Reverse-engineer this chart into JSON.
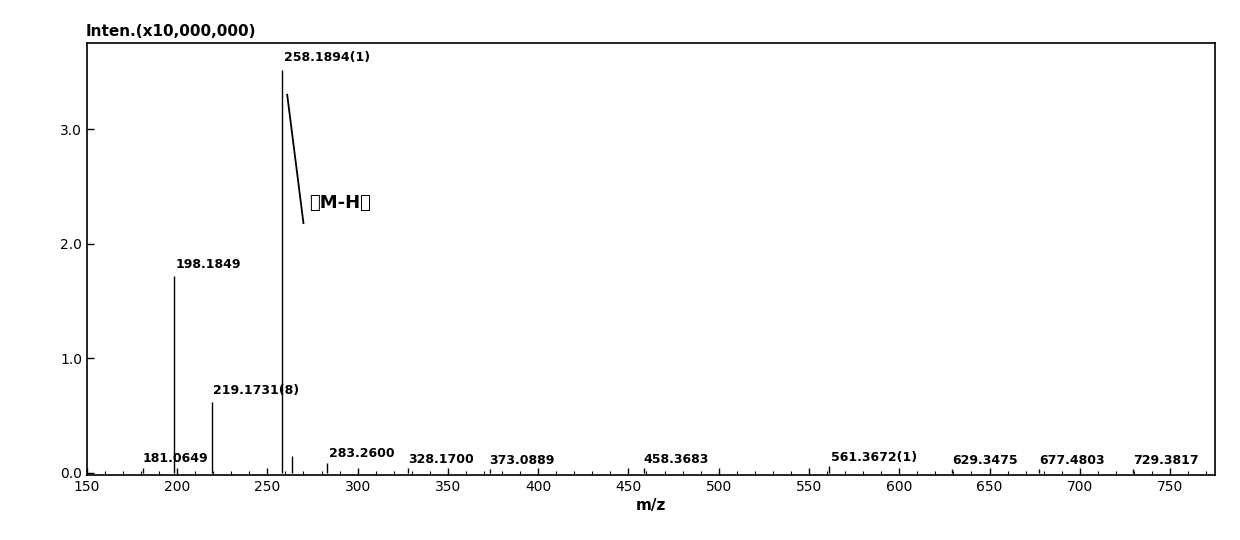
{
  "peaks": [
    {
      "mz": 181.0649,
      "intensity": 0.04,
      "label": "181.0649"
    },
    {
      "mz": 198.1849,
      "intensity": 1.72,
      "label": "198.1849"
    },
    {
      "mz": 219.1731,
      "intensity": 0.62,
      "label": "219.1731(8)"
    },
    {
      "mz": 258.1894,
      "intensity": 3.52,
      "label": "258.1894(1)"
    },
    {
      "mz": 263.5,
      "intensity": 0.15,
      "label": ""
    },
    {
      "mz": 283.26,
      "intensity": 0.09,
      "label": "283.2600"
    },
    {
      "mz": 328.17,
      "intensity": 0.04,
      "label": "328.1700"
    },
    {
      "mz": 373.0889,
      "intensity": 0.03,
      "label": "373.0889"
    },
    {
      "mz": 458.3683,
      "intensity": 0.04,
      "label": "458.3683"
    },
    {
      "mz": 561.3672,
      "intensity": 0.06,
      "label": "561.3672(1)"
    },
    {
      "mz": 629.3475,
      "intensity": 0.03,
      "label": "629.3475"
    },
    {
      "mz": 677.4803,
      "intensity": 0.03,
      "label": "677.4803"
    },
    {
      "mz": 729.3817,
      "intensity": 0.03,
      "label": "729.3817"
    }
  ],
  "xlim": [
    150,
    775
  ],
  "ylim": [
    -0.02,
    3.75
  ],
  "xticks": [
    150,
    200,
    250,
    300,
    350,
    400,
    450,
    500,
    550,
    600,
    650,
    700,
    750
  ],
  "yticks": [
    0.0,
    1.0,
    2.0,
    3.0
  ],
  "xlabel": "m/z",
  "ylabel": "Inten.(x10,000,000)",
  "annotation_label": "【M-H】",
  "line_color": "#000000",
  "background_color": "#ffffff",
  "font_size_ticks": 10,
  "font_size_ylabel": 11,
  "font_size_xlabel": 11,
  "font_size_peak_labels": 9,
  "font_size_annotation": 13,
  "peak_label_offsets": {
    "181.0649": [
      0,
      0.03
    ],
    "198.1849": [
      1,
      0.04
    ],
    "219.1731(8)": [
      1,
      0.04
    ],
    "258.1894(1)": [
      1,
      0.05
    ],
    "283.2600": [
      1,
      0.02
    ],
    "328.1700": [
      0,
      0.02
    ],
    "373.0889": [
      0,
      0.02
    ],
    "458.3683": [
      0,
      0.02
    ],
    "561.3672(1)": [
      1,
      0.02
    ],
    "629.3475": [
      0,
      0.02
    ],
    "677.4803": [
      0,
      0.02
    ],
    "729.3817": [
      0,
      0.02
    ]
  }
}
